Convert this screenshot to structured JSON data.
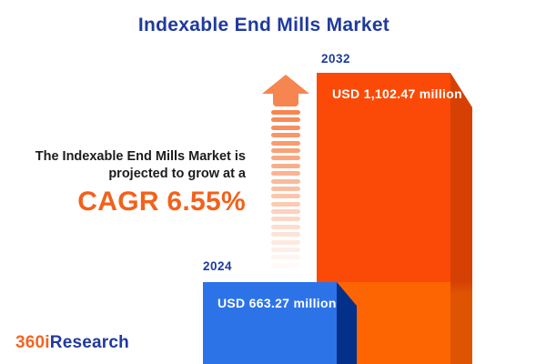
{
  "title": "Indexable End Mills Market",
  "annotation": {
    "line1": "The Indexable End Mills Market is",
    "line2": "projected to grow at a",
    "cagr_label": "CAGR 6.55%"
  },
  "logo": {
    "prefix": "360i",
    "suffix": "Research"
  },
  "arrow": {
    "stripe_count": 21,
    "color": "#F6854F",
    "direction": "up"
  },
  "chart_data": {
    "type": "bar",
    "title": "Indexable End Mills Market",
    "categories": [
      "2024",
      "2032"
    ],
    "values": [
      663.27,
      1102.47
    ],
    "unit": "USD million",
    "value_labels": [
      "USD 663.27 million",
      "USD 1,102.47 million"
    ],
    "growth_metric": "CAGR",
    "growth_value_percent": 6.55,
    "orientation": "vertical",
    "legend": "none",
    "axes": "none",
    "series_colors": [
      "#2D73E8",
      "#FB4A07"
    ]
  },
  "colors": {
    "title_navy": "#1F3A9E",
    "body_text": "#1C1C1C",
    "cagr_orange": "#F3611B",
    "arrow_orange": "#F6854F",
    "bar_2024_front": "#2D73E8",
    "bar_2024_side": "#05308A",
    "bar_2032_front_top": "#FB4A07",
    "bar_2032_front_bottom": "#FC6502",
    "bar_2032_side_top": "#D64103",
    "bar_2032_side_bottom": "#DE5401",
    "logo_orange": "#F26522",
    "logo_navy": "#1F3A9E",
    "background": "#FFFFFF"
  }
}
